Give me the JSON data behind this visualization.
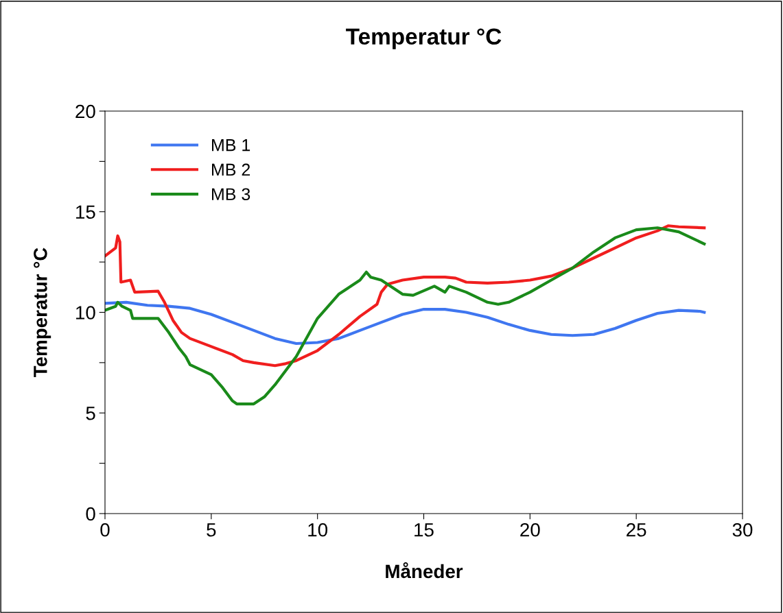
{
  "chart_data": {
    "type": "line",
    "title": "Temperatur °C",
    "xlabel": "Måneder",
    "ylabel": "Temperatur °C",
    "xlim": [
      0,
      30
    ],
    "xticks": [
      0,
      5,
      10,
      15,
      20,
      25,
      30
    ],
    "ylim": [
      0,
      20
    ],
    "yticks": [
      0,
      {
        "value": 2.5,
        "label": null
      },
      5,
      {
        "value": 7.5,
        "label": null
      },
      10,
      {
        "value": 12.5,
        "label": null
      },
      15,
      {
        "value": 17.5,
        "label": null
      },
      20
    ],
    "grid": false,
    "legend": "top left",
    "marker": "none",
    "line_style": "solid",
    "series": [
      {
        "name": "MB 1",
        "color": "#3f76f0",
        "x": [
          0,
          1,
          2,
          3,
          4,
          5,
          6,
          7,
          8,
          9,
          10,
          11,
          12,
          13,
          14,
          15,
          16,
          17,
          18,
          19,
          20,
          21,
          22,
          23,
          24,
          25,
          26,
          27,
          28,
          28.2
        ],
        "values": [
          10.45,
          10.5,
          10.35,
          10.3,
          10.2,
          9.9,
          9.5,
          9.1,
          8.7,
          8.45,
          8.5,
          8.7,
          9.1,
          9.5,
          9.9,
          10.15,
          10.15,
          10.0,
          9.75,
          9.4,
          9.1,
          8.9,
          8.85,
          8.9,
          9.2,
          9.6,
          9.95,
          10.1,
          10.05,
          10.0
        ]
      },
      {
        "name": "MB 2",
        "color": "#f01e1e",
        "x": [
          0,
          0.5,
          0.6,
          0.7,
          0.75,
          1.2,
          1.4,
          2.5,
          2.8,
          3.2,
          3.6,
          4,
          5,
          6,
          6.5,
          7,
          8,
          8.5,
          9,
          10,
          11,
          12,
          12.8,
          13,
          13.3,
          14,
          15,
          16,
          16.5,
          17,
          18,
          19,
          20,
          21,
          22,
          23,
          24,
          25,
          26,
          26.5,
          27,
          28.2
        ],
        "values": [
          12.8,
          13.2,
          13.8,
          13.5,
          11.5,
          11.6,
          11.0,
          11.05,
          10.5,
          9.6,
          9.0,
          8.7,
          8.3,
          7.9,
          7.6,
          7.5,
          7.35,
          7.45,
          7.6,
          8.1,
          8.9,
          9.8,
          10.4,
          11.0,
          11.4,
          11.6,
          11.75,
          11.75,
          11.7,
          11.5,
          11.45,
          11.5,
          11.6,
          11.8,
          12.2,
          12.7,
          13.2,
          13.7,
          14.05,
          14.3,
          14.25,
          14.2
        ]
      },
      {
        "name": "MB 3",
        "color": "#1a8a1a",
        "x": [
          0,
          0.5,
          0.6,
          0.8,
          1.2,
          1.3,
          2.5,
          3,
          3.5,
          3.8,
          4,
          5,
          5.5,
          6,
          6.2,
          7,
          7.5,
          8,
          9,
          10,
          11,
          12,
          12.3,
          12.5,
          13,
          14,
          14.5,
          15.5,
          16,
          16.2,
          17,
          18,
          18.5,
          19,
          20,
          21,
          22,
          23,
          24,
          25,
          26,
          27,
          28.2
        ],
        "values": [
          10.1,
          10.3,
          10.5,
          10.3,
          10.1,
          9.7,
          9.7,
          9.0,
          8.2,
          7.8,
          7.4,
          6.9,
          6.3,
          5.6,
          5.45,
          5.45,
          5.8,
          6.4,
          7.8,
          9.7,
          10.9,
          11.6,
          12.0,
          11.75,
          11.6,
          10.9,
          10.85,
          11.3,
          11.0,
          11.3,
          11.0,
          10.5,
          10.4,
          10.5,
          11.0,
          11.6,
          12.2,
          13.0,
          13.7,
          14.1,
          14.2,
          14.0,
          13.4
        ]
      }
    ]
  }
}
